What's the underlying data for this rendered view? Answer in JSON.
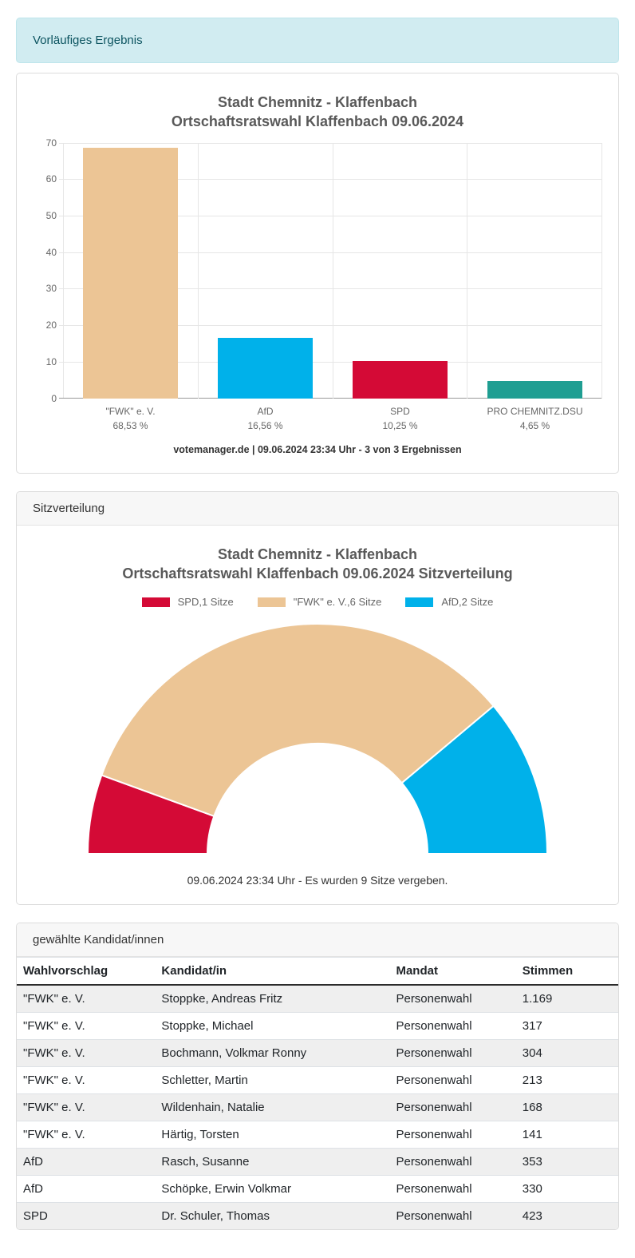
{
  "banner": {
    "text": "Vorläufiges Ergebnis"
  },
  "colors": {
    "fwk": "#ecc595",
    "afd": "#00b1ea",
    "spd": "#d40a36",
    "pro_chemnitz_dsu": "#1f9e92",
    "banner_bg": "#d1ecf1",
    "banner_text": "#0c5460",
    "gridline": "#e6e6e6"
  },
  "chart_data": [
    {
      "type": "bar",
      "title": "Stadt Chemnitz - Klaffenbach",
      "subtitle": "Ortschaftsratswahl Klaffenbach 09.06.2024",
      "categories": [
        "\"FWK\" e. V.",
        "AfD",
        "SPD",
        "PRO CHEMNITZ.DSU"
      ],
      "values": [
        68.53,
        16.56,
        10.25,
        4.65
      ],
      "value_labels": [
        "68,53 %",
        "16,56 %",
        "10,25 %",
        "4,65 %"
      ],
      "bar_colors": [
        "#ecc595",
        "#00b1ea",
        "#d40a36",
        "#1f9e92"
      ],
      "ylim": [
        0,
        70
      ],
      "ytick_step": 10,
      "grid": true,
      "legend_position": "none",
      "footer": "votemanager.de | 09.06.2024 23:34 Uhr - 3 von 3 Ergebnissen"
    },
    {
      "type": "pie",
      "variant": "half-donut",
      "title": "Stadt Chemnitz - Klaffenbach",
      "subtitle": "Ortschaftsratswahl Klaffenbach 09.06.2024 Sitzverteilung",
      "total_seats": 9,
      "segments": [
        {
          "label": "SPD,1 Sitze",
          "name": "SPD",
          "seats": 1,
          "color": "#d40a36"
        },
        {
          "label": "\"FWK\" e. V.,6 Sitze",
          "name": "\"FWK\" e. V.",
          "seats": 6,
          "color": "#ecc595"
        },
        {
          "label": "AfD,2 Sitze",
          "name": "AfD",
          "seats": 2,
          "color": "#00b1ea"
        }
      ],
      "legend_position": "top",
      "caption": "09.06.2024 23:34 Uhr - Es wurden 9 Sitze vergeben."
    }
  ],
  "sections": {
    "seat_panel_header": "Sitzverteilung",
    "candidates_panel_header": "gewählte Kandidat/innen"
  },
  "table": {
    "columns": [
      "Wahlvorschlag",
      "Kandidat/in",
      "Mandat",
      "Stimmen"
    ],
    "rows": [
      {
        "wahlvorschlag": "\"FWK\" e. V.",
        "kandidat": "Stoppke, Andreas Fritz",
        "mandat": "Personenwahl",
        "stimmen": "1.169"
      },
      {
        "wahlvorschlag": "\"FWK\" e. V.",
        "kandidat": "Stoppke, Michael",
        "mandat": "Personenwahl",
        "stimmen": "317"
      },
      {
        "wahlvorschlag": "\"FWK\" e. V.",
        "kandidat": "Bochmann, Volkmar Ronny",
        "mandat": "Personenwahl",
        "stimmen": "304"
      },
      {
        "wahlvorschlag": "\"FWK\" e. V.",
        "kandidat": "Schletter, Martin",
        "mandat": "Personenwahl",
        "stimmen": "213"
      },
      {
        "wahlvorschlag": "\"FWK\" e. V.",
        "kandidat": "Wildenhain, Natalie",
        "mandat": "Personenwahl",
        "stimmen": "168"
      },
      {
        "wahlvorschlag": "\"FWK\" e. V.",
        "kandidat": "Härtig, Torsten",
        "mandat": "Personenwahl",
        "stimmen": "141"
      },
      {
        "wahlvorschlag": "AfD",
        "kandidat": "Rasch, Susanne",
        "mandat": "Personenwahl",
        "stimmen": "353"
      },
      {
        "wahlvorschlag": "AfD",
        "kandidat": "Schöpke, Erwin Volkmar",
        "mandat": "Personenwahl",
        "stimmen": "330"
      },
      {
        "wahlvorschlag": "SPD",
        "kandidat": "Dr. Schuler, Thomas",
        "mandat": "Personenwahl",
        "stimmen": "423"
      }
    ]
  }
}
